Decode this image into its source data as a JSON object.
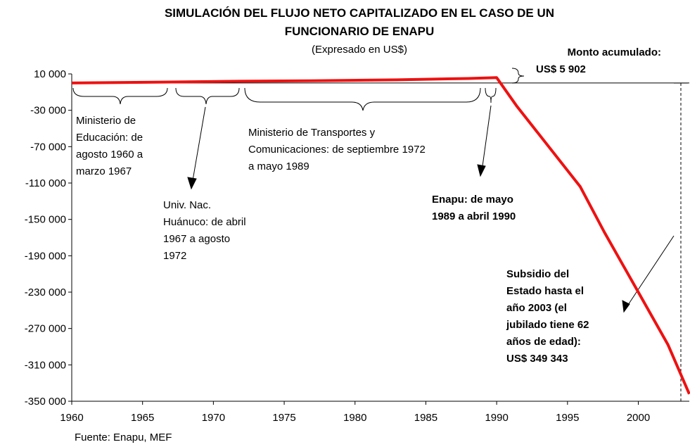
{
  "chart_data": {
    "type": "line",
    "title": [
      "SIMULACIÓN DEL FLUJO NETO CAPITALIZADO EN EL CASO DE UN",
      "FUNCIONARIO DE ENAPU"
    ],
    "subtitle": "(Expresado en US$)",
    "source": "Fuente: Enapu, MEF",
    "x": [
      1960,
      1966.5,
      1972,
      1977,
      1983,
      1988,
      1990,
      1991.4,
      1995.9,
      1997.6,
      2000,
      2002.1,
      2003.6
    ],
    "series": [
      {
        "color": "#ee1111",
        "values": [
          0,
          1000,
          2000,
          2500,
          3500,
          5000,
          5902,
          -25000,
          -114000,
          -164000,
          -230000,
          -288000,
          -342000
        ]
      }
    ],
    "xlim": [
      1960,
      2003.6
    ],
    "xticks": [
      1960,
      1965,
      1970,
      1975,
      1980,
      1985,
      1990,
      1995,
      2000
    ],
    "ylim": [
      -350000,
      10000
    ],
    "yticks": [
      {
        "value": 10000,
        "label": "10 000"
      },
      {
        "value": -30000,
        "label": "-30 000"
      },
      {
        "value": -70000,
        "label": "-70 000"
      },
      {
        "value": -110000,
        "label": "-110 000"
      },
      {
        "value": -150000,
        "label": "-150 000"
      },
      {
        "value": -190000,
        "label": "-190 000"
      },
      {
        "value": -230000,
        "label": "-230 000"
      },
      {
        "value": -270000,
        "label": "-270 000"
      },
      {
        "value": -310000,
        "label": "-310 000"
      },
      {
        "value": -350000,
        "label": "-350 000"
      }
    ],
    "annotations": [
      {
        "lines": [
          "Ministerio de",
          "Educación: de",
          "agosto 1960 a",
          "marzo 1967"
        ]
      },
      {
        "lines": [
          "Univ. Nac.",
          "Huánuco: de abril",
          "1967 a agosto",
          "1972"
        ]
      },
      {
        "lines": [
          "Ministerio de Transportes y",
          "Comunicaciones: de septiembre 1972",
          "a mayo 1989"
        ]
      },
      {
        "lines": [
          "Enapu: de mayo",
          "1989 a abril 1990"
        ]
      },
      {
        "lines": [
          "Subsidio del",
          "Estado hasta el",
          "año 2003 (el",
          "jubilado tiene 62",
          "años de edad):",
          "US$ 349 343"
        ]
      },
      {
        "lines": [
          "Monto acumulado:",
          "US$ 5 902"
        ]
      }
    ]
  }
}
